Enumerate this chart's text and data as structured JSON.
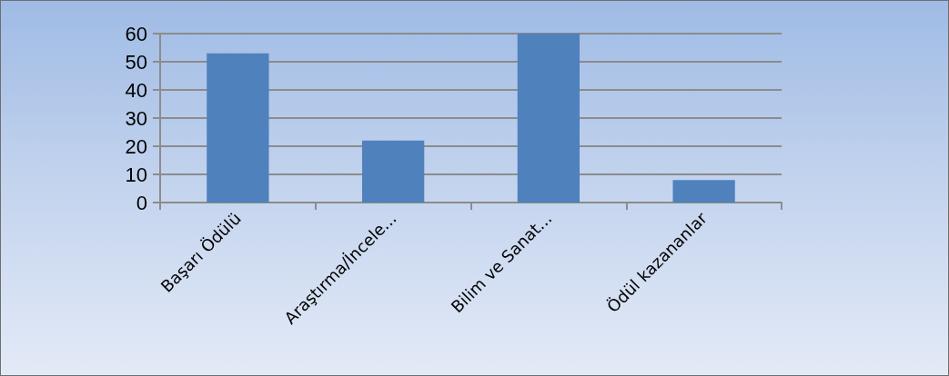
{
  "chart_data": {
    "type": "bar",
    "categories": [
      "Başarı Ödülü",
      "Araştırma/İncele...",
      "Bilim ve Sanat...",
      "Ödül kazananlar"
    ],
    "values": [
      53,
      22,
      60,
      8
    ],
    "color": "#4f81bd",
    "ylim": [
      0,
      60
    ],
    "yticks": [
      0,
      10,
      20,
      30,
      40,
      50,
      60
    ],
    "grid": "y"
  }
}
